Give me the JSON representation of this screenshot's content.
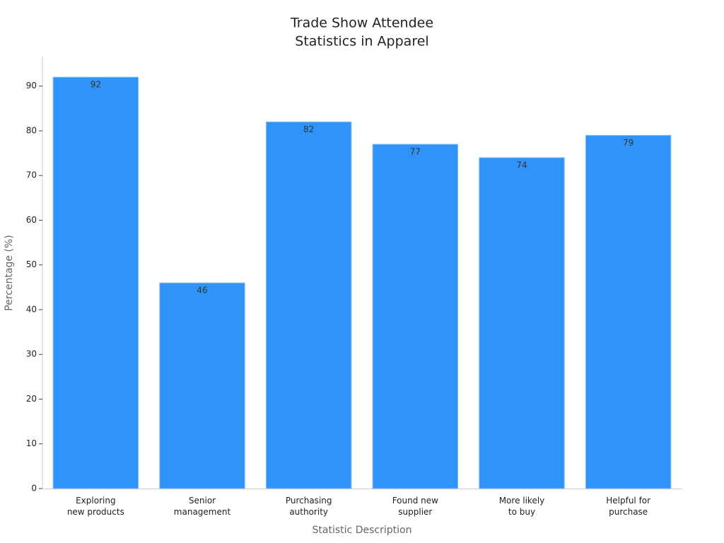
{
  "chart_data": {
    "type": "bar",
    "title": [
      "Trade Show Attendee",
      "Statistics in Apparel"
    ],
    "x_label": "Statistic Description",
    "y_label": "Percentage (%)",
    "categories": [
      "Exploring\nnew products",
      "Senior\nmanagement",
      "Purchasing\nauthority",
      "Found new\nsupplier",
      "More likely\nto buy",
      "Helpful for\npurchase"
    ],
    "values": [
      92,
      46,
      82,
      77,
      74,
      79
    ],
    "color": "#2f93f7",
    "ylim": [
      0,
      96.6
    ],
    "yticks": [
      0,
      10,
      20,
      30,
      40,
      50,
      60,
      70,
      80,
      90
    ],
    "grid": false
  }
}
